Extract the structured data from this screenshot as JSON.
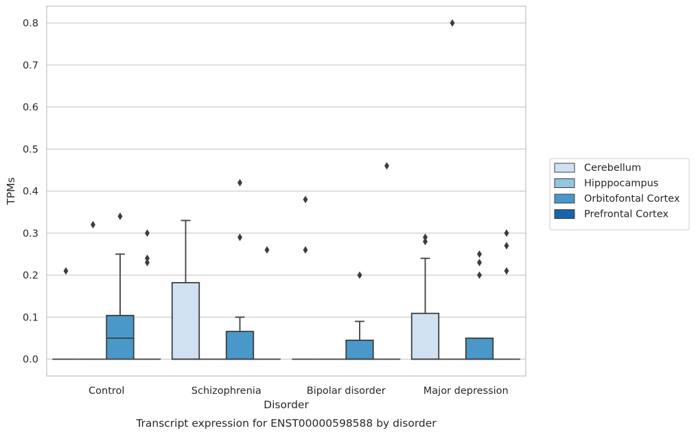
{
  "chart_data": {
    "type": "box",
    "title": "Transcript expression for ENST00000598588 by disorder",
    "xlabel": "Disorder",
    "ylabel": "TPMs",
    "ylim": [
      -0.04,
      0.84
    ],
    "yticks": [
      "0.0",
      "0.1",
      "0.2",
      "0.3",
      "0.4",
      "0.5",
      "0.6",
      "0.7",
      "0.8"
    ],
    "grid": true,
    "legend_position": "right",
    "categories": [
      "Control",
      "Schizophrenia",
      "Bipolar disorder",
      "Major depression"
    ],
    "series": [
      {
        "name": "Cerebellum",
        "color": "#d0e1f2",
        "boxes": [
          {
            "q1": 0,
            "median": 0,
            "q3": 0,
            "whisker_low": 0,
            "whisker_high": 0,
            "outliers": [
              0.21
            ]
          },
          {
            "q1": 0,
            "median": 0,
            "q3": 0.182,
            "whisker_low": 0,
            "whisker_high": 0.33,
            "outliers": []
          },
          {
            "q1": 0,
            "median": 0,
            "q3": 0,
            "whisker_low": 0,
            "whisker_high": 0,
            "outliers": [
              0.38,
              0.26
            ]
          },
          {
            "q1": 0,
            "median": 0,
            "q3": 0.109,
            "whisker_low": 0,
            "whisker_high": 0.24,
            "outliers": [
              0.29,
              0.28
            ]
          }
        ]
      },
      {
        "name": "Hipppocampus",
        "color": "#94c4df",
        "boxes": [
          {
            "q1": 0,
            "median": 0,
            "q3": 0,
            "whisker_low": 0,
            "whisker_high": 0,
            "outliers": [
              0.32
            ]
          },
          {
            "q1": 0,
            "median": 0,
            "q3": 0,
            "whisker_low": 0,
            "whisker_high": 0,
            "outliers": []
          },
          {
            "q1": 0,
            "median": 0,
            "q3": 0,
            "whisker_low": 0,
            "whisker_high": 0,
            "outliers": []
          },
          {
            "q1": 0,
            "median": 0,
            "q3": 0,
            "whisker_low": 0,
            "whisker_high": 0,
            "outliers": [
              0.8
            ]
          }
        ]
      },
      {
        "name": "Orbitofontal Cortex",
        "color": "#4a98c9",
        "boxes": [
          {
            "q1": 0,
            "median": 0.05,
            "q3": 0.104,
            "whisker_low": 0,
            "whisker_high": 0.25,
            "outliers": [
              0.34
            ]
          },
          {
            "q1": 0,
            "median": 0,
            "q3": 0.066,
            "whisker_low": 0,
            "whisker_high": 0.1,
            "outliers": [
              0.42,
              0.29
            ]
          },
          {
            "q1": 0,
            "median": 0,
            "q3": 0.045,
            "whisker_low": 0,
            "whisker_high": 0.09,
            "outliers": [
              0.2
            ]
          },
          {
            "q1": 0,
            "median": 0,
            "q3": 0.05,
            "whisker_low": 0,
            "whisker_high": 0.05,
            "outliers": [
              0.25,
              0.23,
              0.2
            ]
          }
        ]
      },
      {
        "name": "Prefrontal Cortex",
        "color": "#1764ab",
        "boxes": [
          {
            "q1": 0,
            "median": 0,
            "q3": 0,
            "whisker_low": 0,
            "whisker_high": 0,
            "outliers": [
              0.3,
              0.24,
              0.23
            ]
          },
          {
            "q1": 0,
            "median": 0,
            "q3": 0,
            "whisker_low": 0,
            "whisker_high": 0,
            "outliers": [
              0.26
            ]
          },
          {
            "q1": 0,
            "median": 0,
            "q3": 0,
            "whisker_low": 0,
            "whisker_high": 0,
            "outliers": [
              0.46
            ]
          },
          {
            "q1": 0,
            "median": 0,
            "q3": 0,
            "whisker_low": 0,
            "whisker_high": 0,
            "outliers": [
              0.3,
              0.27,
              0.21
            ]
          }
        ]
      }
    ]
  }
}
